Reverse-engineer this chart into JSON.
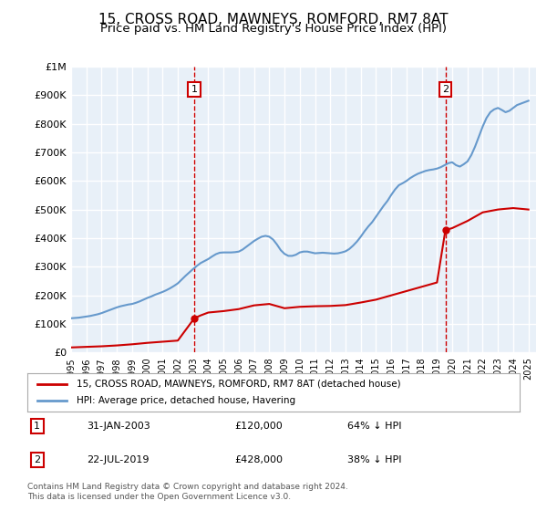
{
  "title": "15, CROSS ROAD, MAWNEYS, ROMFORD, RM7 8AT",
  "subtitle": "Price paid vs. HM Land Registry's House Price Index (HPI)",
  "title_fontsize": 11,
  "subtitle_fontsize": 9.5,
  "background_color": "#ffffff",
  "plot_bg_color": "#e8f0f8",
  "grid_color": "#ffffff",
  "ylim": [
    0,
    1000000
  ],
  "yticks": [
    0,
    100000,
    200000,
    300000,
    400000,
    500000,
    600000,
    700000,
    800000,
    900000,
    1000000
  ],
  "ytick_labels": [
    "£0",
    "£100K",
    "£200K",
    "£300K",
    "£400K",
    "£500K",
    "£600K",
    "£700K",
    "£800K",
    "£900K",
    "£1M"
  ],
  "xlim_start": 1995.0,
  "xlim_end": 2025.5,
  "sale1_year": 2003.083,
  "sale1_price": 120000,
  "sale2_year": 2019.554,
  "sale2_price": 428000,
  "sale_color": "#cc0000",
  "hpi_color": "#6699cc",
  "legend_entry1": "15, CROSS ROAD, MAWNEYS, ROMFORD, RM7 8AT (detached house)",
  "legend_entry2": "HPI: Average price, detached house, Havering",
  "annotation1_label": "1",
  "annotation1_date": "31-JAN-2003",
  "annotation1_price": "£120,000",
  "annotation1_hpi": "64% ↓ HPI",
  "annotation2_label": "2",
  "annotation2_date": "22-JUL-2019",
  "annotation2_price": "£428,000",
  "annotation2_hpi": "38% ↓ HPI",
  "footer": "Contains HM Land Registry data © Crown copyright and database right 2024.\nThis data is licensed under the Open Government Licence v3.0.",
  "hpi_x": [
    1995.0,
    1995.25,
    1995.5,
    1995.75,
    1996.0,
    1996.25,
    1996.5,
    1996.75,
    1997.0,
    1997.25,
    1997.5,
    1997.75,
    1998.0,
    1998.25,
    1998.5,
    1998.75,
    1999.0,
    1999.25,
    1999.5,
    1999.75,
    2000.0,
    2000.25,
    2000.5,
    2000.75,
    2001.0,
    2001.25,
    2001.5,
    2001.75,
    2002.0,
    2002.25,
    2002.5,
    2002.75,
    2003.0,
    2003.25,
    2003.5,
    2003.75,
    2004.0,
    2004.25,
    2004.5,
    2004.75,
    2005.0,
    2005.25,
    2005.5,
    2005.75,
    2006.0,
    2006.25,
    2006.5,
    2006.75,
    2007.0,
    2007.25,
    2007.5,
    2007.75,
    2008.0,
    2008.25,
    2008.5,
    2008.75,
    2009.0,
    2009.25,
    2009.5,
    2009.75,
    2010.0,
    2010.25,
    2010.5,
    2010.75,
    2011.0,
    2011.25,
    2011.5,
    2011.75,
    2012.0,
    2012.25,
    2012.5,
    2012.75,
    2013.0,
    2013.25,
    2013.5,
    2013.75,
    2014.0,
    2014.25,
    2014.5,
    2014.75,
    2015.0,
    2015.25,
    2015.5,
    2015.75,
    2016.0,
    2016.25,
    2016.5,
    2016.75,
    2017.0,
    2017.25,
    2017.5,
    2017.75,
    2018.0,
    2018.25,
    2018.5,
    2018.75,
    2019.0,
    2019.25,
    2019.5,
    2019.75,
    2020.0,
    2020.25,
    2020.5,
    2020.75,
    2021.0,
    2021.25,
    2021.5,
    2021.75,
    2022.0,
    2022.25,
    2022.5,
    2022.75,
    2023.0,
    2023.25,
    2023.5,
    2023.75,
    2024.0,
    2024.25,
    2024.5,
    2024.75,
    2025.0
  ],
  "hpi_y": [
    120000,
    121000,
    122000,
    124000,
    126000,
    128000,
    131000,
    134000,
    138000,
    143000,
    148000,
    153000,
    158000,
    162000,
    165000,
    168000,
    170000,
    174000,
    179000,
    185000,
    191000,
    196000,
    202000,
    207000,
    212000,
    218000,
    225000,
    233000,
    242000,
    255000,
    268000,
    280000,
    292000,
    303000,
    313000,
    320000,
    327000,
    336000,
    344000,
    349000,
    350000,
    350000,
    350000,
    351000,
    353000,
    360000,
    370000,
    380000,
    390000,
    398000,
    405000,
    408000,
    405000,
    395000,
    378000,
    358000,
    345000,
    338000,
    338000,
    342000,
    350000,
    353000,
    353000,
    350000,
    347000,
    348000,
    349000,
    348000,
    347000,
    346000,
    347000,
    350000,
    354000,
    362000,
    374000,
    388000,
    405000,
    424000,
    441000,
    456000,
    475000,
    494000,
    513000,
    530000,
    551000,
    570000,
    585000,
    592000,
    600000,
    610000,
    618000,
    625000,
    630000,
    635000,
    638000,
    640000,
    643000,
    648000,
    655000,
    662000,
    665000,
    655000,
    650000,
    658000,
    668000,
    690000,
    720000,
    755000,
    790000,
    820000,
    840000,
    850000,
    855000,
    848000,
    840000,
    845000,
    855000,
    865000,
    870000,
    875000,
    880000
  ],
  "red_x": [
    1995.0,
    1996.0,
    1997.0,
    1998.0,
    1999.0,
    2000.0,
    2001.0,
    2002.0,
    2003.083,
    2003.5,
    2004.0,
    2005.0,
    2006.0,
    2007.0,
    2008.0,
    2009.0,
    2010.0,
    2011.0,
    2012.0,
    2013.0,
    2014.0,
    2015.0,
    2016.0,
    2017.0,
    2018.0,
    2019.0,
    2019.554,
    2020.0,
    2021.0,
    2022.0,
    2023.0,
    2024.0,
    2025.0
  ],
  "red_y": [
    18000,
    20000,
    22000,
    25000,
    29000,
    34000,
    38000,
    42000,
    120000,
    130000,
    140000,
    145000,
    152000,
    165000,
    170000,
    155000,
    160000,
    162000,
    163000,
    166000,
    175000,
    185000,
    200000,
    215000,
    230000,
    245000,
    428000,
    435000,
    460000,
    490000,
    500000,
    505000,
    500000
  ]
}
